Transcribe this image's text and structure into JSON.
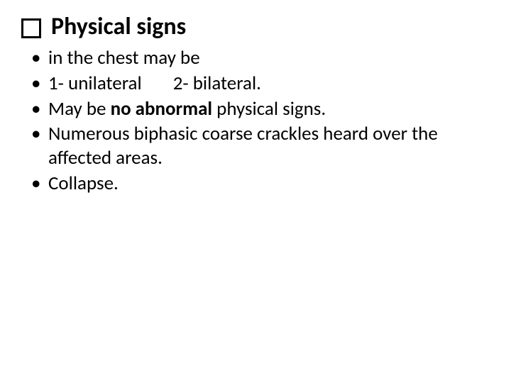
{
  "heading": {
    "title": "Physical signs"
  },
  "bullets": {
    "b1": "in the chest may be",
    "b2_a": "1- unilateral",
    "b2_b": "2- bilateral.",
    "b3_pre": " May be ",
    "b3_bold": "no abnormal",
    "b3_post": " physical signs.",
    "b4": "Numerous biphasic coarse crackles heard over the affected areas.",
    "b5": "Collapse."
  },
  "style": {
    "background_color": "#ffffff",
    "text_color": "#000000",
    "heading_fontsize": 34,
    "body_fontsize": 27,
    "checkbox_border": "#000000"
  }
}
